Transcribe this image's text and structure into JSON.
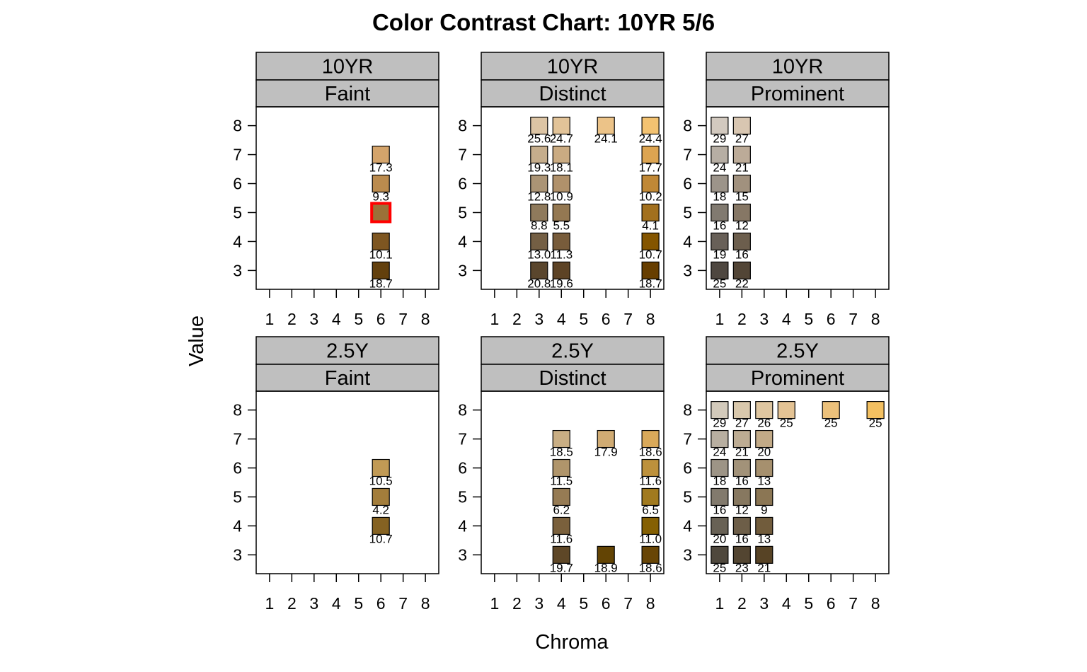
{
  "chart_data": {
    "type": "tile-grid",
    "title": "Color Contrast Chart: 10YR 5/6",
    "xlabel": "Chroma",
    "ylabel": "Value",
    "x_ticks": [
      1,
      2,
      3,
      4,
      5,
      6,
      7,
      8
    ],
    "y_ticks": [
      3,
      4,
      5,
      6,
      7,
      8
    ],
    "xlim": [
      0.4,
      8.6
    ],
    "ylim": [
      2.35,
      8.65
    ],
    "highlight": {
      "hue": "10YR",
      "value": 5,
      "chroma": 6,
      "color": "#ff0000"
    },
    "panels": [
      {
        "hue": "10YR",
        "contrast": "Faint",
        "chips": [
          {
            "chroma": 6,
            "value": 7,
            "color": "#d4a46b",
            "label": "17.3"
          },
          {
            "chroma": 6,
            "value": 6,
            "color": "#bb8b4e",
            "label": "9.3"
          },
          {
            "chroma": 6,
            "value": 5,
            "color": "#9b7138",
            "label": ""
          },
          {
            "chroma": 6,
            "value": 4,
            "color": "#7e5621",
            "label": "10.1"
          },
          {
            "chroma": 6,
            "value": 3,
            "color": "#63400d",
            "label": "18.7"
          }
        ]
      },
      {
        "hue": "10YR",
        "contrast": "Distinct",
        "chips": [
          {
            "chroma": 3,
            "value": 8,
            "color": "#dcc4a4",
            "label": "25.6"
          },
          {
            "chroma": 4,
            "value": 8,
            "color": "#e2c398",
            "label": "24.7"
          },
          {
            "chroma": 6,
            "value": 8,
            "color": "#ecc388",
            "label": "24.1"
          },
          {
            "chroma": 8,
            "value": 8,
            "color": "#f3c271",
            "label": "24.4"
          },
          {
            "chroma": 3,
            "value": 7,
            "color": "#c5ad8c",
            "label": "19.3"
          },
          {
            "chroma": 4,
            "value": 7,
            "color": "#caab82",
            "label": "18.1"
          },
          {
            "chroma": 8,
            "value": 7,
            "color": "#dca451",
            "label": "17.7"
          },
          {
            "chroma": 3,
            "value": 6,
            "color": "#ab9475",
            "label": "12.8"
          },
          {
            "chroma": 4,
            "value": 6,
            "color": "#b0916b",
            "label": "10.9"
          },
          {
            "chroma": 8,
            "value": 6,
            "color": "#c08836",
            "label": "10.2"
          },
          {
            "chroma": 3,
            "value": 5,
            "color": "#8f7a5c",
            "label": "8.8"
          },
          {
            "chroma": 4,
            "value": 5,
            "color": "#947852",
            "label": "5.5"
          },
          {
            "chroma": 8,
            "value": 5,
            "color": "#a2701e",
            "label": "4.1"
          },
          {
            "chroma": 3,
            "value": 4,
            "color": "#745f44",
            "label": "13.0"
          },
          {
            "chroma": 4,
            "value": 4,
            "color": "#785c3b",
            "label": "11.3"
          },
          {
            "chroma": 8,
            "value": 4,
            "color": "#845500",
            "label": "10.7"
          },
          {
            "chroma": 3,
            "value": 3,
            "color": "#5a462d",
            "label": "20.8"
          },
          {
            "chroma": 4,
            "value": 3,
            "color": "#5d4325",
            "label": "19.6"
          },
          {
            "chroma": 8,
            "value": 3,
            "color": "#673e00",
            "label": "18.7"
          }
        ]
      },
      {
        "hue": "10YR",
        "contrast": "Prominent",
        "chips": [
          {
            "chroma": 1,
            "value": 8,
            "color": "#d2c9bf",
            "label": "29"
          },
          {
            "chroma": 2,
            "value": 8,
            "color": "#d8c6b1",
            "label": "27"
          },
          {
            "chroma": 1,
            "value": 7,
            "color": "#b6aea4",
            "label": "24"
          },
          {
            "chroma": 2,
            "value": 7,
            "color": "#bcab98",
            "label": "21"
          },
          {
            "chroma": 1,
            "value": 6,
            "color": "#9c948a",
            "label": "18"
          },
          {
            "chroma": 2,
            "value": 6,
            "color": "#a1917e",
            "label": "15"
          },
          {
            "chroma": 1,
            "value": 5,
            "color": "#817a70",
            "label": "16"
          },
          {
            "chroma": 2,
            "value": 5,
            "color": "#867765",
            "label": "12"
          },
          {
            "chroma": 1,
            "value": 4,
            "color": "#686058",
            "label": "19"
          },
          {
            "chroma": 2,
            "value": 4,
            "color": "#6c5e4d",
            "label": "16"
          },
          {
            "chroma": 1,
            "value": 3,
            "color": "#4e4740",
            "label": "25"
          },
          {
            "chroma": 2,
            "value": 3,
            "color": "#524536",
            "label": "22"
          }
        ]
      },
      {
        "hue": "2.5Y",
        "contrast": "Faint",
        "chips": [
          {
            "chroma": 6,
            "value": 6,
            "color": "#c19a55",
            "label": "10.5"
          },
          {
            "chroma": 6,
            "value": 5,
            "color": "#a37d3b",
            "label": "4.2"
          },
          {
            "chroma": 6,
            "value": 4,
            "color": "#856222",
            "label": "10.7"
          }
        ]
      },
      {
        "hue": "2.5Y",
        "contrast": "Distinct",
        "chips": [
          {
            "chroma": 4,
            "value": 7,
            "color": "#c9ae84",
            "label": "18.5"
          },
          {
            "chroma": 6,
            "value": 7,
            "color": "#d0ab73",
            "label": "17.9"
          },
          {
            "chroma": 8,
            "value": 7,
            "color": "#d9a95a",
            "label": "18.6"
          },
          {
            "chroma": 4,
            "value": 6,
            "color": "#b0956b",
            "label": "11.5"
          },
          {
            "chroma": 8,
            "value": 6,
            "color": "#bd913c",
            "label": "11.6"
          },
          {
            "chroma": 4,
            "value": 5,
            "color": "#967b54",
            "label": "6.2"
          },
          {
            "chroma": 8,
            "value": 5,
            "color": "#a17a1f",
            "label": "6.5"
          },
          {
            "chroma": 4,
            "value": 4,
            "color": "#7a603c",
            "label": "11.6"
          },
          {
            "chroma": 8,
            "value": 4,
            "color": "#856003",
            "label": "11.0"
          },
          {
            "chroma": 4,
            "value": 3,
            "color": "#5e4727",
            "label": "19.7"
          },
          {
            "chroma": 6,
            "value": 3,
            "color": "#634404",
            "label": "18.9"
          },
          {
            "chroma": 8,
            "value": 3,
            "color": "#684506",
            "label": "18.6"
          }
        ]
      },
      {
        "hue": "2.5Y",
        "contrast": "Prominent",
        "chips": [
          {
            "chroma": 1,
            "value": 8,
            "color": "#d3cabb",
            "label": "29"
          },
          {
            "chroma": 2,
            "value": 8,
            "color": "#d9c8ac",
            "label": "27"
          },
          {
            "chroma": 3,
            "value": 8,
            "color": "#dfc6a0",
            "label": "26"
          },
          {
            "chroma": 4,
            "value": 8,
            "color": "#e4c394",
            "label": "25"
          },
          {
            "chroma": 6,
            "value": 8,
            "color": "#ecc17b",
            "label": "25"
          },
          {
            "chroma": 8,
            "value": 8,
            "color": "#f3c061",
            "label": "25"
          },
          {
            "chroma": 1,
            "value": 7,
            "color": "#b8afa1",
            "label": "24"
          },
          {
            "chroma": 2,
            "value": 7,
            "color": "#bdac93",
            "label": "21"
          },
          {
            "chroma": 3,
            "value": 7,
            "color": "#c2aa87",
            "label": "20"
          },
          {
            "chroma": 1,
            "value": 6,
            "color": "#9d9486",
            "label": "18"
          },
          {
            "chroma": 2,
            "value": 6,
            "color": "#a29279",
            "label": "16"
          },
          {
            "chroma": 3,
            "value": 6,
            "color": "#a6906e",
            "label": "13"
          },
          {
            "chroma": 1,
            "value": 5,
            "color": "#827a6d",
            "label": "16"
          },
          {
            "chroma": 2,
            "value": 5,
            "color": "#877860",
            "label": "12"
          },
          {
            "chroma": 3,
            "value": 5,
            "color": "#8b7654",
            "label": "9"
          },
          {
            "chroma": 1,
            "value": 4,
            "color": "#686155",
            "label": "20"
          },
          {
            "chroma": 2,
            "value": 4,
            "color": "#6d5e48",
            "label": "16"
          },
          {
            "chroma": 3,
            "value": 4,
            "color": "#715c3c",
            "label": "13"
          },
          {
            "chroma": 1,
            "value": 3,
            "color": "#4f483d",
            "label": "25"
          },
          {
            "chroma": 2,
            "value": 3,
            "color": "#534531",
            "label": "23"
          },
          {
            "chroma": 3,
            "value": 3,
            "color": "#574325",
            "label": "21"
          }
        ]
      }
    ]
  },
  "style": {
    "strip_fill": "#bfbfbf",
    "panel_border": "#000000",
    "highlight_color": "#ff0000"
  }
}
